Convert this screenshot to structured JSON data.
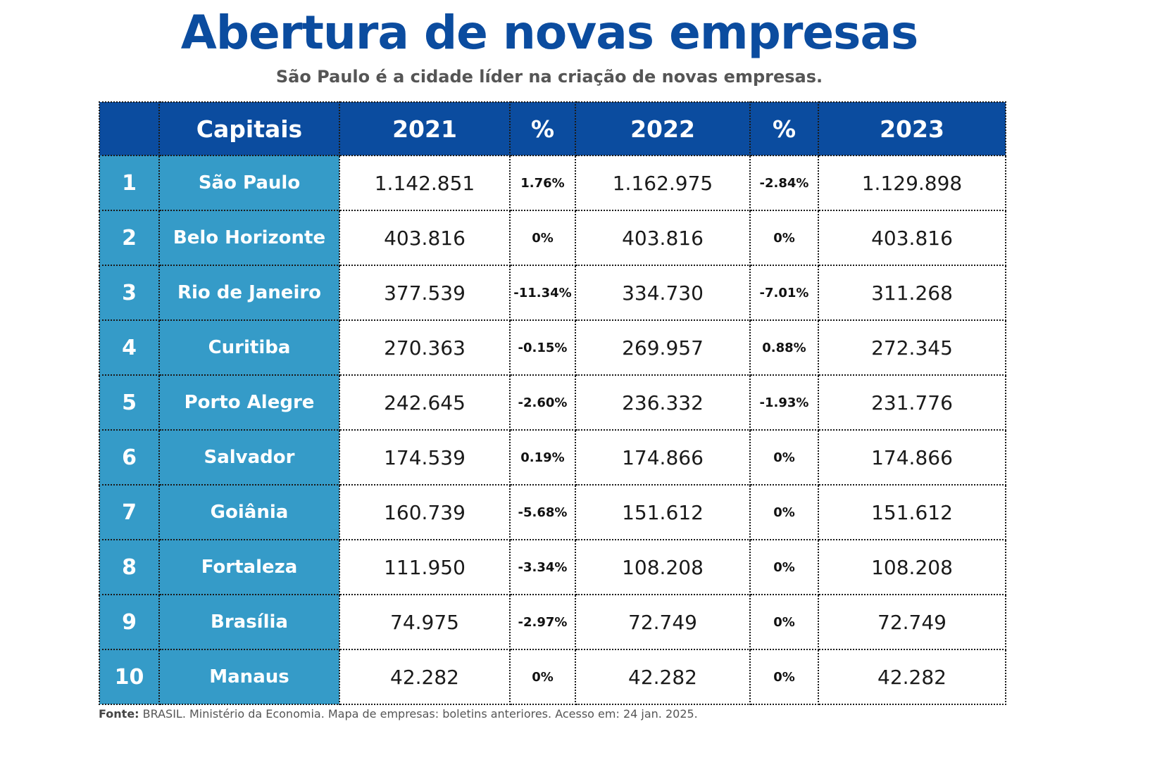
{
  "header": {
    "title": "Abertura de novas empresas",
    "subtitle": "São Paulo é a cidade líder na criação de novas empresas."
  },
  "colors": {
    "header_bg": "#0b4c9f",
    "city_col_bg": "#359bc8",
    "title": "#0b4c9f",
    "subtitle": "#555555"
  },
  "chart_data": {
    "type": "table",
    "title": "Abertura de novas empresas",
    "subtitle": "São Paulo é a cidade líder na criação de novas empresas.",
    "columns": [
      "",
      "Capitais",
      "2021",
      "%",
      "2022",
      "%",
      "2023"
    ],
    "rows": [
      {
        "rank": "1",
        "city": "São Paulo",
        "y2021": "1.142.851",
        "pct1": "1.76%",
        "y2022": "1.162.975",
        "pct2": "-2.84%",
        "y2023": "1.129.898"
      },
      {
        "rank": "2",
        "city": "Belo Horizonte",
        "y2021": "403.816",
        "pct1": "0%",
        "y2022": "403.816",
        "pct2": "0%",
        "y2023": "403.816"
      },
      {
        "rank": "3",
        "city": "Rio de Janeiro",
        "y2021": "377.539",
        "pct1": "-11.34%",
        "y2022": "334.730",
        "pct2": "-7.01%",
        "y2023": "311.268"
      },
      {
        "rank": "4",
        "city": "Curitiba",
        "y2021": "270.363",
        "pct1": "-0.15%",
        "y2022": "269.957",
        "pct2": "0.88%",
        "y2023": "272.345"
      },
      {
        "rank": "5",
        "city": "Porto Alegre",
        "y2021": "242.645",
        "pct1": "-2.60%",
        "y2022": "236.332",
        "pct2": "-1.93%",
        "y2023": "231.776"
      },
      {
        "rank": "6",
        "city": "Salvador",
        "y2021": "174.539",
        "pct1": "0.19%",
        "y2022": "174.866",
        "pct2": "0%",
        "y2023": "174.866"
      },
      {
        "rank": "7",
        "city": "Goiânia",
        "y2021": "160.739",
        "pct1": "-5.68%",
        "y2022": "151.612",
        "pct2": "0%",
        "y2023": "151.612"
      },
      {
        "rank": "8",
        "city": "Fortaleza",
        "y2021": "111.950",
        "pct1": "-3.34%",
        "y2022": "108.208",
        "pct2": "0%",
        "y2023": "108.208"
      },
      {
        "rank": "9",
        "city": "Brasília",
        "y2021": "74.975",
        "pct1": "-2.97%",
        "y2022": "72.749",
        "pct2": "0%",
        "y2023": "72.749"
      },
      {
        "rank": "10",
        "city": "Manaus",
        "y2021": "42.282",
        "pct1": "0%",
        "y2022": "42.282",
        "pct2": "0%",
        "y2023": "42.282"
      }
    ]
  },
  "footer": {
    "label": "Fonte:",
    "text": " BRASIL. Ministério da Economia. Mapa de empresas: boletins anteriores. Acesso em: 24 jan. 2025."
  }
}
